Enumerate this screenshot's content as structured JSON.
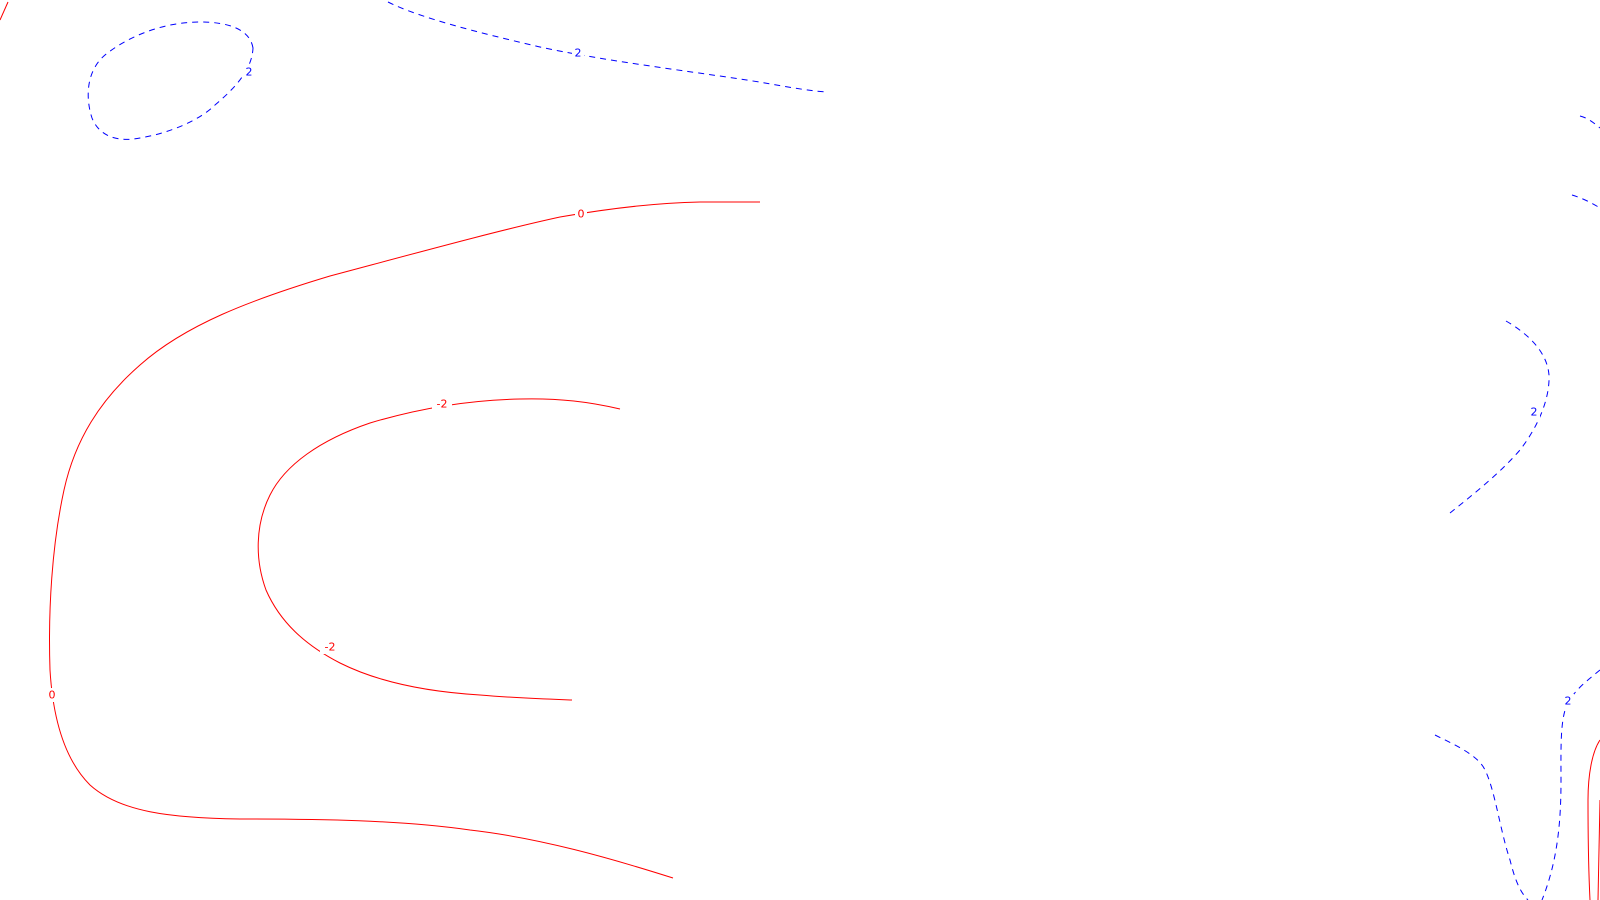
{
  "map": {
    "type": "contour-map",
    "colors": {
      "background": "#ffffff",
      "negative": "#ff0000",
      "positive": "#0000ff"
    }
  },
  "contours": [
    {
      "id": "c0-main",
      "level": "0",
      "sign": "zero",
      "label": "0"
    },
    {
      "id": "c-2-inner",
      "level": "-2",
      "sign": "negative",
      "label": "-2"
    },
    {
      "id": "c0-right",
      "level": "0",
      "sign": "zero",
      "label": ""
    },
    {
      "id": "c2-top-oval",
      "level": "2",
      "sign": "positive",
      "label": "2"
    },
    {
      "id": "c2-top-line",
      "level": "2",
      "sign": "positive",
      "label": "2"
    },
    {
      "id": "c2-right-mid",
      "level": "2",
      "sign": "positive",
      "label": "2"
    },
    {
      "id": "c2-right-bot",
      "level": "2",
      "sign": "positive",
      "label": "2"
    },
    {
      "id": "c2-right-edge1",
      "level": "2",
      "sign": "positive",
      "label": ""
    },
    {
      "id": "c2-right-edge2",
      "level": "2",
      "sign": "positive",
      "label": ""
    }
  ],
  "labels": {
    "top_oval": "2",
    "top_line": "2",
    "zero_top": "0",
    "zero_left": "0",
    "neg_top": "-2",
    "neg_bottom": "-2",
    "right_mid": "2",
    "right_bottom": "2"
  }
}
